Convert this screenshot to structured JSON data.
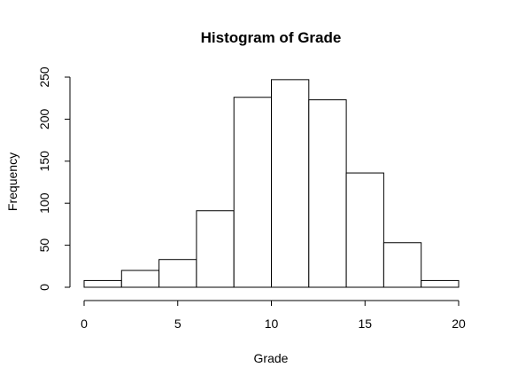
{
  "chart_data": {
    "type": "bar",
    "title": "Histogram of Grade",
    "xlabel": "Grade",
    "ylabel": "Frequency",
    "bins": [
      {
        "start": 0,
        "end": 2,
        "count": 8
      },
      {
        "start": 2,
        "end": 4,
        "count": 20
      },
      {
        "start": 4,
        "end": 6,
        "count": 33
      },
      {
        "start": 6,
        "end": 8,
        "count": 91
      },
      {
        "start": 8,
        "end": 10,
        "count": 226
      },
      {
        "start": 10,
        "end": 12,
        "count": 247
      },
      {
        "start": 12,
        "end": 14,
        "count": 223
      },
      {
        "start": 14,
        "end": 16,
        "count": 136
      },
      {
        "start": 16,
        "end": 18,
        "count": 53
      },
      {
        "start": 18,
        "end": 20,
        "count": 8
      }
    ],
    "xlim": [
      0,
      20
    ],
    "ylim": [
      0,
      250
    ],
    "x_ticks": [
      0,
      5,
      10,
      15,
      20
    ],
    "y_ticks": [
      0,
      50,
      100,
      150,
      200,
      250
    ],
    "grid": false,
    "legend": "none"
  }
}
